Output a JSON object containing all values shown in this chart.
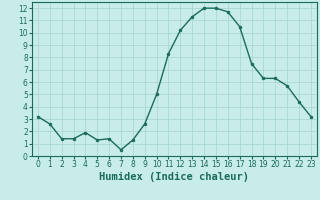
{
  "x": [
    0,
    1,
    2,
    3,
    4,
    5,
    6,
    7,
    8,
    9,
    10,
    11,
    12,
    13,
    14,
    15,
    16,
    17,
    18,
    19,
    20,
    21,
    22,
    23
  ],
  "y": [
    3.2,
    2.6,
    1.4,
    1.4,
    1.9,
    1.3,
    1.4,
    0.5,
    1.3,
    2.6,
    5.0,
    8.3,
    10.2,
    11.3,
    12.0,
    12.0,
    11.7,
    10.5,
    7.5,
    6.3,
    6.3,
    5.7,
    4.4,
    3.2
  ],
  "line_color": "#1a6b5a",
  "marker": "o",
  "marker_size": 2.0,
  "bg_color": "#c8ecea",
  "grid_color": "#aad8d5",
  "xlabel": "Humidex (Indice chaleur)",
  "xlim": [
    -0.5,
    23.5
  ],
  "ylim": [
    0,
    12.5
  ],
  "xticks": [
    0,
    1,
    2,
    3,
    4,
    5,
    6,
    7,
    8,
    9,
    10,
    11,
    12,
    13,
    14,
    15,
    16,
    17,
    18,
    19,
    20,
    21,
    22,
    23
  ],
  "yticks": [
    0,
    1,
    2,
    3,
    4,
    5,
    6,
    7,
    8,
    9,
    10,
    11,
    12
  ],
  "tick_fontsize": 5.5,
  "xlabel_fontsize": 7.5,
  "label_color": "#1a6b5a"
}
